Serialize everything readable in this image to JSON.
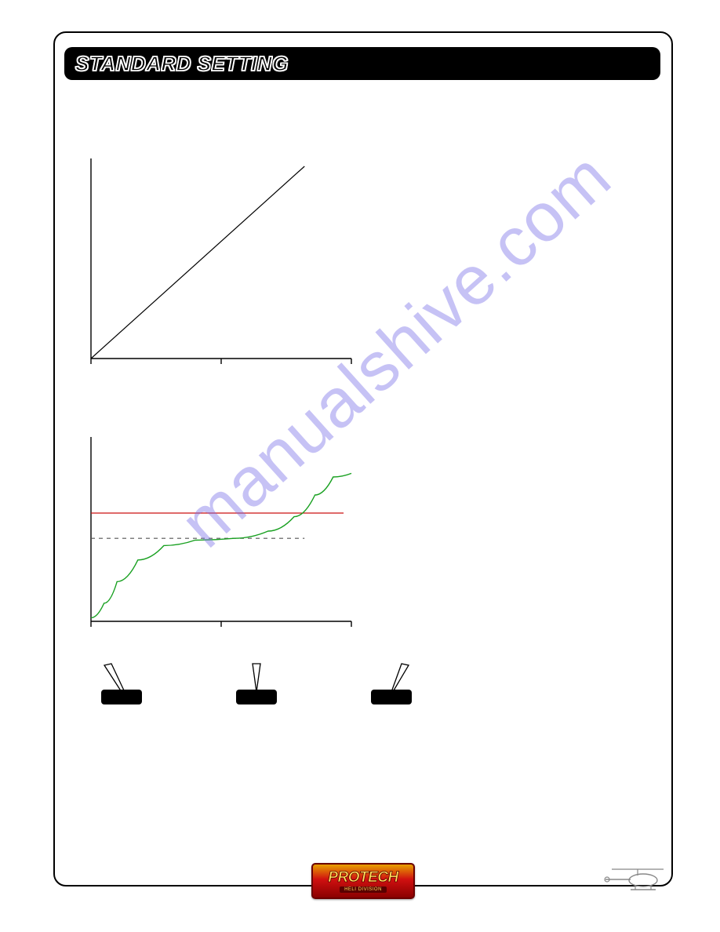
{
  "title": "STANDARD SETTING",
  "watermark": "manualshive.com",
  "logo_main": "PROTECH",
  "logo_sub": "HELI DIVISION",
  "chart1": {
    "type": "line",
    "x_axis_ticks": [
      0,
      0.5,
      1.0
    ],
    "line": {
      "x1": 0,
      "y1": 0,
      "x2": 0.82,
      "y2": 0.98
    },
    "axis_color": "#000000",
    "line_color": "#000000",
    "line_width": 1.2
  },
  "chart2": {
    "type": "line",
    "x_axis_ticks": [
      0,
      0.5,
      1.0
    ],
    "red_line": {
      "y": 0.6,
      "color": "#cc1010",
      "width": 1.2
    },
    "dash_line": {
      "y": 0.46,
      "color": "#555555",
      "dash": "5,5",
      "width": 1.2
    },
    "green_curve": {
      "color": "#18a020",
      "width": 1.4,
      "points": [
        [
          0.0,
          0.02
        ],
        [
          0.05,
          0.1
        ],
        [
          0.1,
          0.22
        ],
        [
          0.18,
          0.34
        ],
        [
          0.28,
          0.42
        ],
        [
          0.4,
          0.45
        ],
        [
          0.55,
          0.46
        ],
        [
          0.68,
          0.5
        ],
        [
          0.78,
          0.58
        ],
        [
          0.86,
          0.7
        ],
        [
          0.93,
          0.8
        ],
        [
          1.0,
          0.82
        ]
      ]
    },
    "axis_color": "#000000"
  },
  "switches": {
    "positions": [
      "left",
      "center",
      "right"
    ],
    "base_color": "#000000"
  }
}
